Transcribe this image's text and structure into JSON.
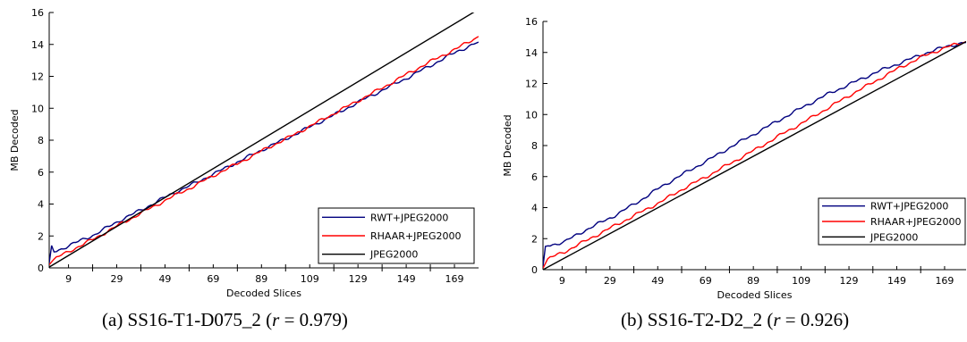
{
  "charts": [
    {
      "caption": {
        "prefix": "(a) SS16-T1-D075_2 (",
        "var": "r",
        "suffix": " = 0.979)"
      },
      "chart_data": {
        "type": "line",
        "xlabel": "Decoded Slices",
        "ylabel": "MB Decoded",
        "xlim": [
          1,
          179
        ],
        "ylim": [
          0,
          16
        ],
        "xticks": [
          9,
          29,
          49,
          69,
          89,
          109,
          129,
          149,
          169
        ],
        "yticks": [
          0,
          2,
          4,
          6,
          8,
          10,
          12,
          14,
          16
        ],
        "grid": false,
        "legend": "bottom-right",
        "series": [
          {
            "name": "RWT+JPEG2000",
            "color": "#00007f",
            "x": [
              1,
              2,
              3,
              10,
              20,
              30,
              40,
              50,
              60,
              70,
              80,
              90,
              100,
              110,
              120,
              130,
              140,
              150,
              160,
              170,
              179
            ],
            "y": [
              0.3,
              1.4,
              1.0,
              1.45,
              2.1,
              2.95,
              3.7,
              4.5,
              5.2,
              5.95,
              6.7,
              7.45,
              8.15,
              8.9,
              9.65,
              10.45,
              11.2,
              11.95,
              12.75,
              13.55,
              14.15
            ]
          },
          {
            "name": "RHAAR+JPEG2000",
            "color": "#ff0000",
            "x": [
              1,
              3,
              10,
              20,
              30,
              40,
              50,
              60,
              70,
              80,
              90,
              100,
              110,
              120,
              130,
              140,
              150,
              160,
              170,
              179
            ],
            "y": [
              0.2,
              0.55,
              1.1,
              1.85,
              2.7,
              3.5,
              4.3,
              5.05,
              5.85,
              6.6,
              7.4,
              8.15,
              8.95,
              9.75,
              10.55,
              11.35,
              12.2,
              13.0,
              13.75,
              14.5
            ]
          },
          {
            "name": "JPEG2000",
            "color": "#000000",
            "x": [
              1,
              179
            ],
            "y": [
              0.05,
              16.2
            ]
          }
        ]
      }
    },
    {
      "caption": {
        "prefix": "(b) SS16-T2-D2_2 (",
        "var": "r",
        "suffix": " = 0.926)"
      },
      "chart_data": {
        "type": "line",
        "xlabel": "Decoded Slices",
        "ylabel": "MB Decoded",
        "xlim": [
          1,
          178
        ],
        "ylim": [
          0,
          16
        ],
        "xticks": [
          9,
          29,
          49,
          69,
          89,
          109,
          129,
          149,
          169
        ],
        "yticks": [
          0,
          2,
          4,
          6,
          8,
          10,
          12,
          14,
          16
        ],
        "grid": false,
        "legend": "bottom-right",
        "series": [
          {
            "name": "RWT+JPEG2000",
            "color": "#00007f",
            "x": [
              1,
              2,
              10,
              20,
              30,
              40,
              50,
              60,
              70,
              80,
              90,
              100,
              110,
              120,
              130,
              140,
              150,
              160,
              170,
              178
            ],
            "y": [
              0.2,
              1.5,
              1.8,
              2.65,
              3.4,
              4.3,
              5.3,
              6.2,
              7.05,
              7.95,
              8.8,
              9.65,
              10.5,
              11.3,
              12.0,
              12.7,
              13.3,
              13.9,
              14.4,
              14.65
            ]
          },
          {
            "name": "RHAAR+JPEG2000",
            "color": "#ff0000",
            "x": [
              1,
              3,
              10,
              20,
              30,
              40,
              50,
              60,
              70,
              80,
              90,
              100,
              110,
              120,
              130,
              140,
              150,
              160,
              170,
              178
            ],
            "y": [
              0.1,
              0.7,
              1.15,
              1.95,
              2.75,
              3.55,
              4.35,
              5.25,
              6.05,
              6.9,
              7.75,
              8.65,
              9.5,
              10.4,
              11.3,
              12.15,
              13.0,
              13.75,
              14.35,
              14.7
            ]
          },
          {
            "name": "JPEG2000",
            "color": "#000000",
            "x": [
              1,
              178
            ],
            "y": [
              0.0,
              14.7
            ]
          }
        ]
      }
    }
  ]
}
